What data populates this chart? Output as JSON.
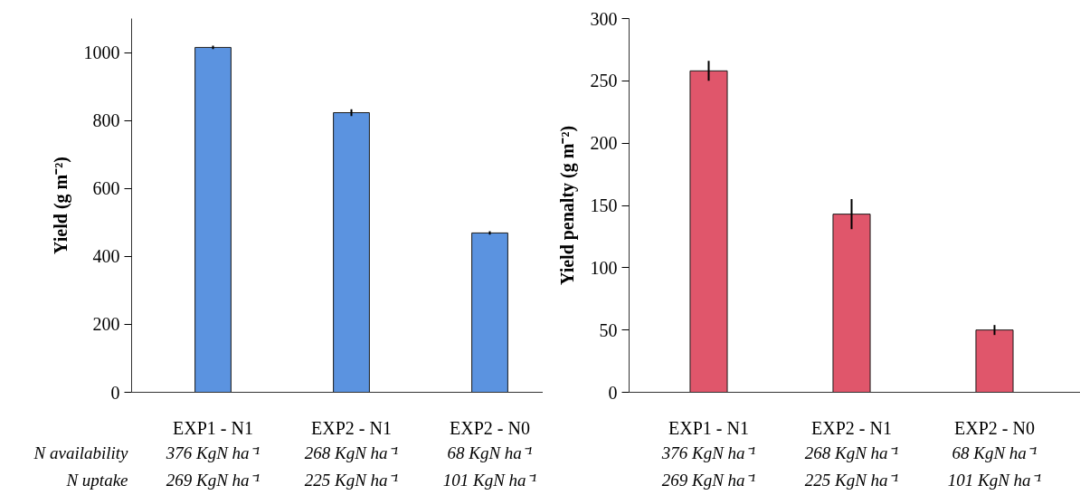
{
  "chart_data": [
    {
      "type": "bar",
      "categories": [
        "EXP1 - N1",
        "EXP2 - N1",
        "EXP2 - N0"
      ],
      "values": [
        1015,
        823,
        469
      ],
      "errors": [
        5,
        10,
        5
      ],
      "color": "#5b93e0",
      "ylim": [
        0,
        1100
      ],
      "yticks": [
        0,
        200,
        400,
        600,
        800,
        1000
      ],
      "ylabel": "Yield (g m⁻²)",
      "annotations": [
        "N availability",
        "N uptake",
        "376 KgN ha⁻¹",
        "268 KgN ha⁻¹",
        "68 KgN ha⁻¹",
        "269 KgN ha⁻¹",
        "225 KgN ha⁻¹",
        "101 KgN ha⁻¹"
      ]
    },
    {
      "type": "bar",
      "categories": [
        "EXP1 - N1",
        "EXP2 - N1",
        "EXP2 - N0"
      ],
      "values": [
        258,
        143,
        50
      ],
      "errors": [
        8,
        12,
        4
      ],
      "color": "#e0566b",
      "ylim": [
        0,
        300
      ],
      "yticks": [
        0,
        50,
        100,
        150,
        200,
        250,
        300
      ],
      "ylabel": "Yield penalty (g m⁻²)",
      "annotations": [
        "376 KgN ha⁻¹",
        "268 KgN ha⁻¹",
        "68 KgN ha⁻¹",
        "269 KgN ha⁻¹",
        "225 KgN ha⁻¹",
        "101 KgN ha⁻¹"
      ]
    }
  ]
}
